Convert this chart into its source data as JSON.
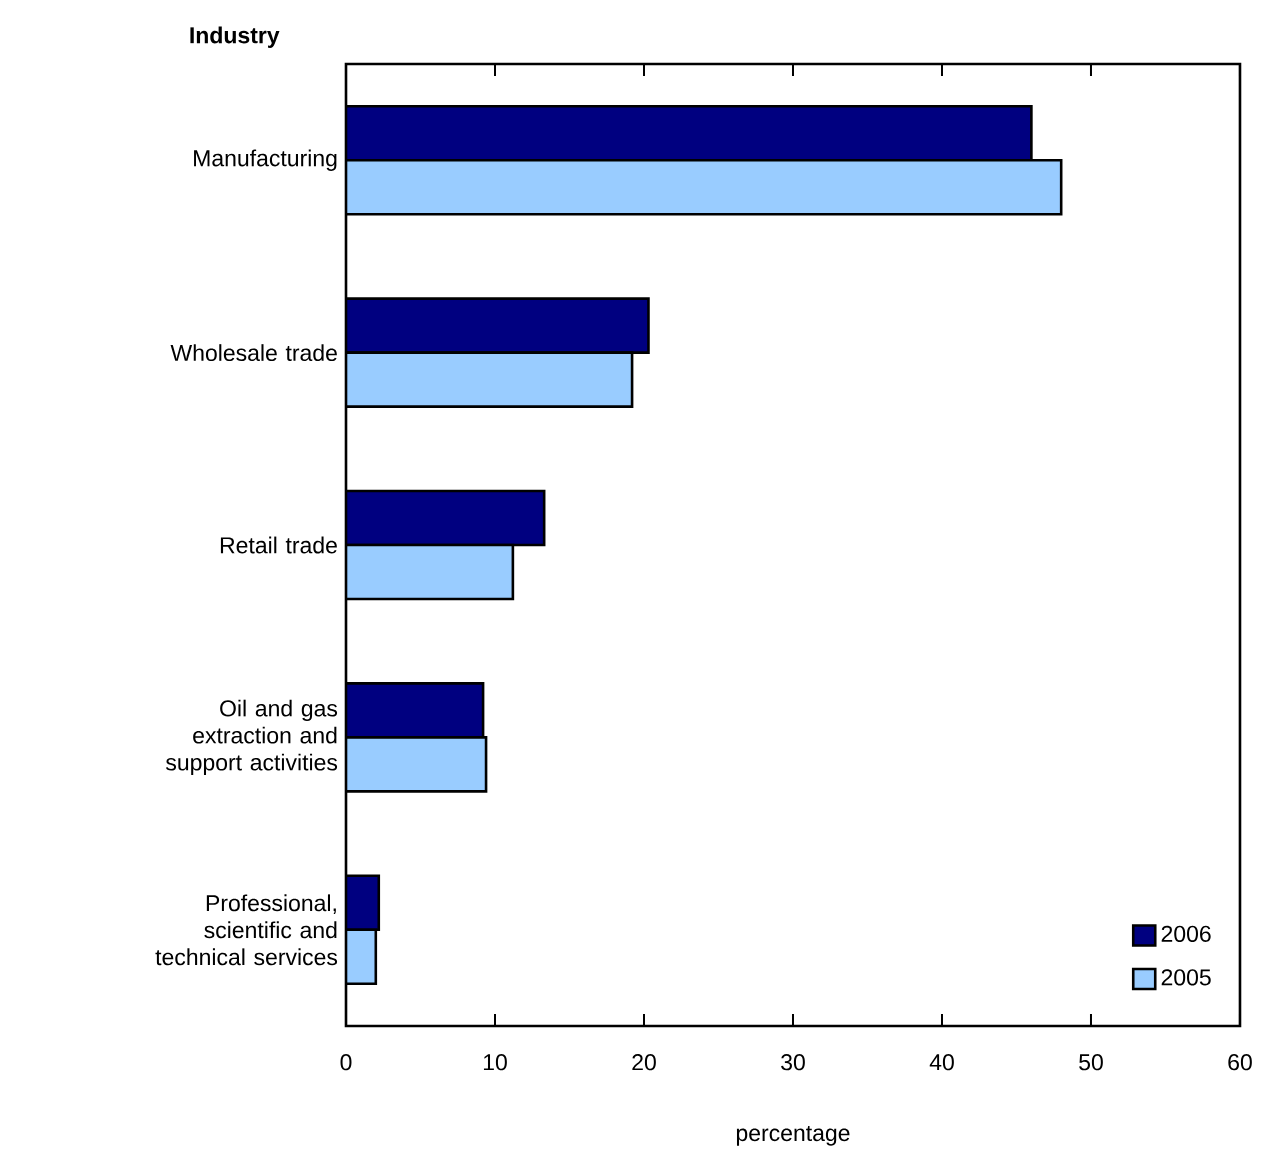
{
  "chart_data": {
    "type": "bar",
    "orientation": "horizontal",
    "ylabel": "Industry",
    "xlabel": "percentage",
    "categories": [
      "Manufacturing",
      "Wholesale trade",
      "Retail trade",
      "Oil and gas extraction and support activities",
      "Professional, scientific and technical services"
    ],
    "series": [
      {
        "name": "2006",
        "color": "#000080",
        "values": [
          46.0,
          20.3,
          13.3,
          9.2,
          2.2
        ]
      },
      {
        "name": "2005",
        "color": "#99ccff",
        "values": [
          48.0,
          19.2,
          11.2,
          9.4,
          2.0
        ]
      }
    ],
    "xlim": [
      0,
      60
    ],
    "xticks": [
      0,
      10,
      20,
      30,
      40,
      50,
      60
    ],
    "legend": "bottom right"
  }
}
